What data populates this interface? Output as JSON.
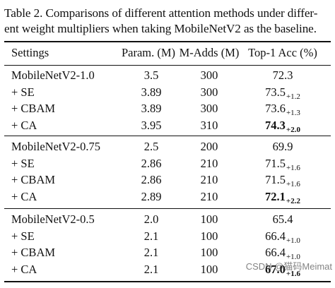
{
  "caption": {
    "line1": "Table 2. Comparisons of different attention methods under differ-",
    "line2": "ent weight multipliers when taking MobileNetV2 as the baseline."
  },
  "header": {
    "settings": "Settings",
    "param": "Param. (M)",
    "madds": "M-Adds (M)",
    "acc": "Top-1 Acc (%)"
  },
  "groups": [
    {
      "rows": [
        {
          "setting": "MobileNetV2-1.0",
          "param": "3.5",
          "madds": "300",
          "acc": "72.3",
          "delta": "",
          "bold": false
        },
        {
          "setting": "+ SE",
          "param": "3.89",
          "madds": "300",
          "acc": "73.5",
          "delta": "+1.2",
          "bold": false
        },
        {
          "setting": "+ CBAM",
          "param": "3.89",
          "madds": "300",
          "acc": "73.6",
          "delta": "+1.3",
          "bold": false
        },
        {
          "setting": "+ CA",
          "param": "3.95",
          "madds": "310",
          "acc": "74.3",
          "delta": "+2.0",
          "bold": true
        }
      ]
    },
    {
      "rows": [
        {
          "setting": "MobileNetV2-0.75",
          "param": "2.5",
          "madds": "200",
          "acc": "69.9",
          "delta": "",
          "bold": false
        },
        {
          "setting": "+ SE",
          "param": "2.86",
          "madds": "210",
          "acc": "71.5",
          "delta": "+1.6",
          "bold": false
        },
        {
          "setting": "+ CBAM",
          "param": "2.86",
          "madds": "210",
          "acc": "71.5",
          "delta": "+1.6",
          "bold": false
        },
        {
          "setting": "+ CA",
          "param": "2.89",
          "madds": "210",
          "acc": "72.1",
          "delta": "+2.2",
          "bold": true
        }
      ]
    },
    {
      "rows": [
        {
          "setting": "MobileNetV2-0.5",
          "param": "2.0",
          "madds": "100",
          "acc": "65.4",
          "delta": "",
          "bold": false
        },
        {
          "setting": "+ SE",
          "param": "2.1",
          "madds": "100",
          "acc": "66.4",
          "delta": "+1.0",
          "bold": false
        },
        {
          "setting": "+ CBAM",
          "param": "2.1",
          "madds": "100",
          "acc": "66.4",
          "delta": "+1.0",
          "bold": false
        },
        {
          "setting": "+ CA",
          "param": "2.1",
          "madds": "100",
          "acc": "67.0",
          "delta": "+1.6",
          "bold": true
        }
      ]
    }
  ],
  "watermark": "CSDN @猫码Meimat"
}
